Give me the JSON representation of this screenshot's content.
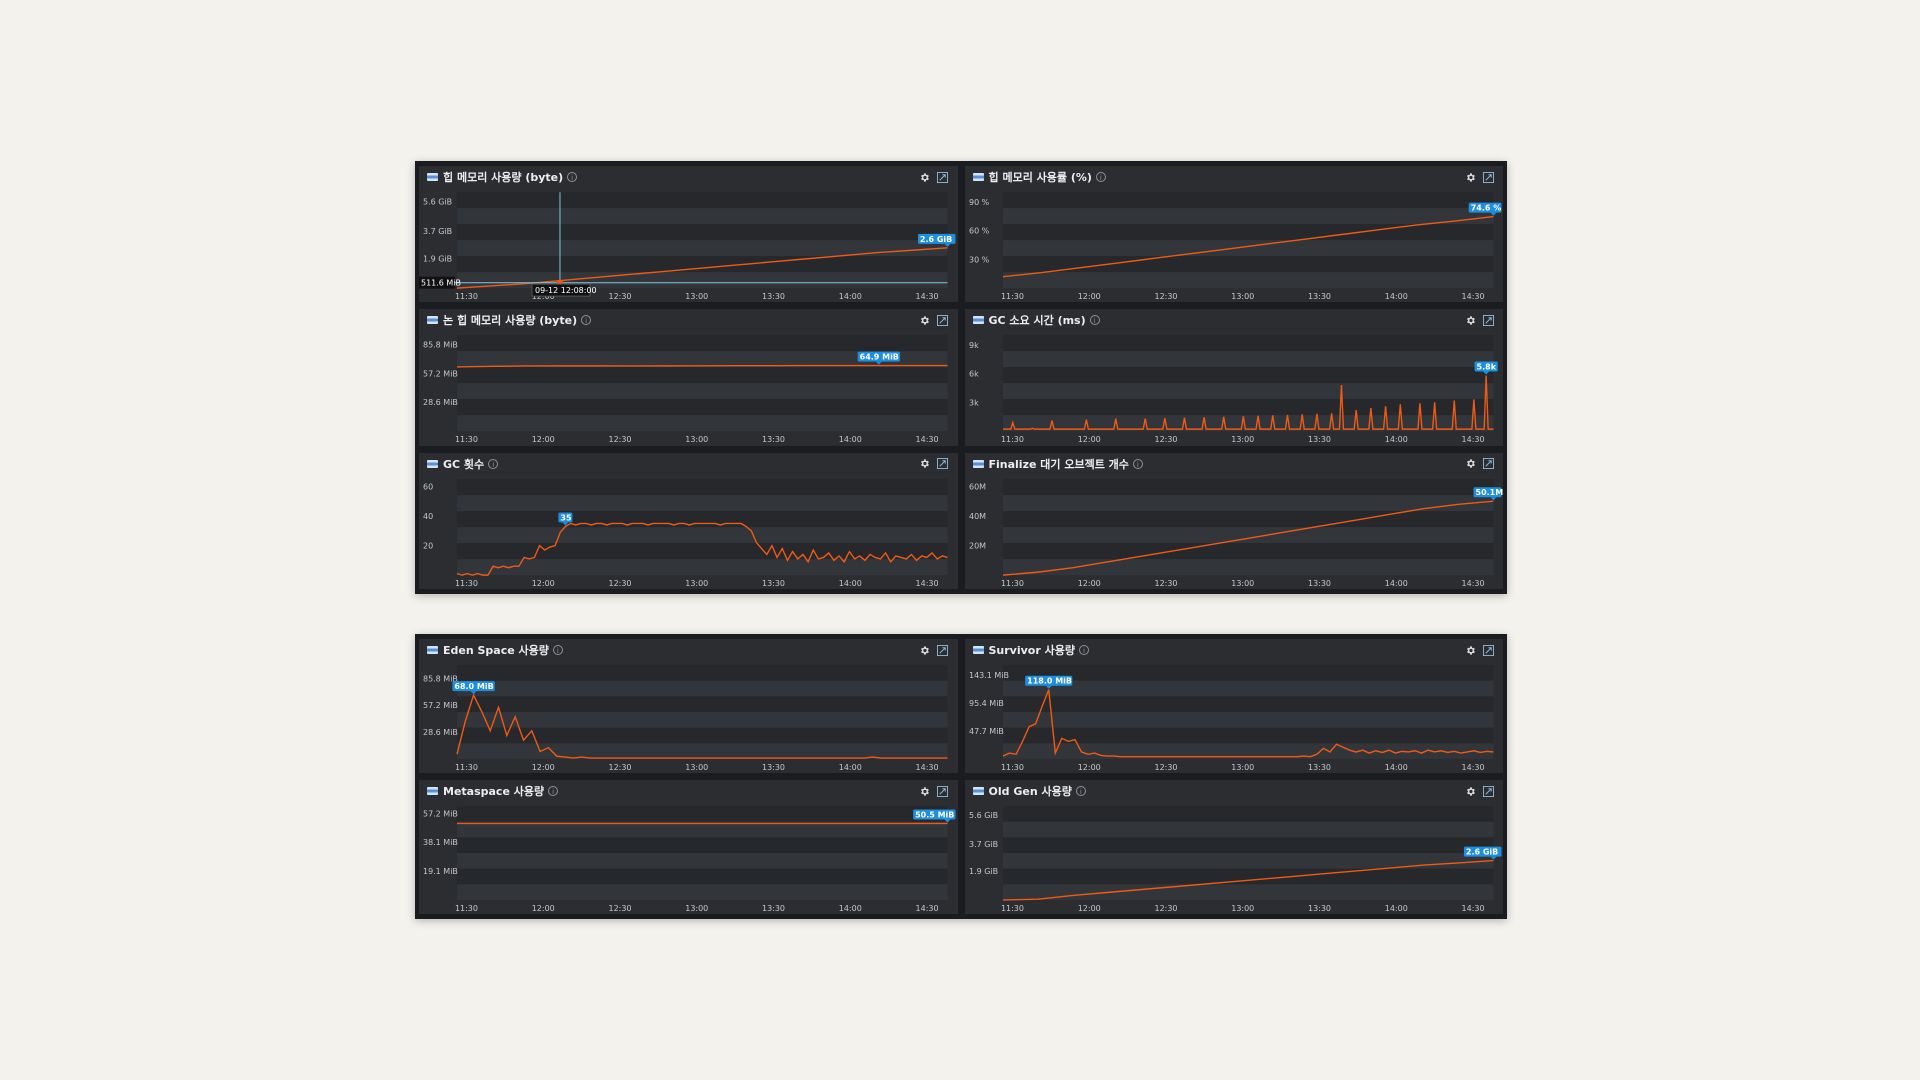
{
  "board_top": {
    "panels": [
      {
        "id": "heap-bytes",
        "title": "힙 메모리 사용량 (byte)",
        "yticks": [
          "5.6 GiB",
          "3.7 GiB",
          "1.9 GiB"
        ],
        "yvals": [
          5.6,
          3.7,
          1.9
        ],
        "ymax": 6.2,
        "xticks": [
          "11:30",
          "12:00",
          "12:30",
          "13:00",
          "13:30",
          "14:00",
          "14:30"
        ],
        "series": [
          0,
          0.15,
          0.3,
          0.5,
          0.7,
          0.9,
          1.1,
          1.3,
          1.5,
          1.7,
          1.9,
          2.1,
          2.3,
          2.45,
          2.6
        ],
        "last_label": "2.6 GiB",
        "cursor": {
          "frac": 0.21,
          "time_label": "09-12 12:08:00",
          "value_label": "511.6 MiB"
        }
      },
      {
        "id": "heap-percent",
        "title": "힙 메모리 사용률 (%)",
        "yticks": [
          "90 %",
          "60 %",
          "30 %"
        ],
        "yvals": [
          90,
          60,
          30
        ],
        "ymax": 100,
        "xticks": [
          "11:30",
          "12:00",
          "12:30",
          "13:00",
          "13:30",
          "14:00",
          "14:30"
        ],
        "series": [
          12,
          16,
          21,
          26,
          31,
          36,
          41,
          46,
          51,
          56,
          61,
          66,
          70,
          74.6
        ],
        "last_label": "74.6 %"
      },
      {
        "id": "non-heap-bytes",
        "title": "논 힙 메모리 사용량 (byte)",
        "yticks": [
          "85.8 MiB",
          "57.2 MiB",
          "28.6 MiB"
        ],
        "yvals": [
          85.8,
          57.2,
          28.6
        ],
        "ymax": 95,
        "xticks": [
          "11:30",
          "12:00",
          "12:30",
          "13:00",
          "13:30",
          "14:00",
          "14:30"
        ],
        "series": [
          63.5,
          64.2,
          64.5,
          64.6,
          64.6,
          64.5,
          64.6,
          64.7,
          64.8,
          64.8,
          64.9,
          64.9,
          64.9,
          64.9,
          64.9
        ],
        "last_label": "64.9 MiB",
        "label_frac": 0.86
      },
      {
        "id": "gc-time",
        "title": "GC 소요 시간 (ms)",
        "yticks": [
          "9k",
          "6k",
          "3k"
        ],
        "yvals": [
          9000,
          6000,
          3000
        ],
        "ymax": 10000,
        "xticks": [
          "11:30",
          "12:00",
          "12:30",
          "13:00",
          "13:30",
          "14:00",
          "14:30"
        ],
        "spikes": [
          [
            0.02,
            900
          ],
          [
            0.06,
            300
          ],
          [
            0.1,
            1100
          ],
          [
            0.17,
            1200
          ],
          [
            0.23,
            1300
          ],
          [
            0.29,
            1300
          ],
          [
            0.33,
            1350
          ],
          [
            0.37,
            1400
          ],
          [
            0.41,
            1450
          ],
          [
            0.45,
            1500
          ],
          [
            0.49,
            1550
          ],
          [
            0.52,
            1600
          ],
          [
            0.55,
            1650
          ],
          [
            0.58,
            1700
          ],
          [
            0.61,
            1750
          ],
          [
            0.64,
            1800
          ],
          [
            0.67,
            1850
          ],
          [
            0.69,
            4800
          ],
          [
            0.72,
            2200
          ],
          [
            0.75,
            2400
          ],
          [
            0.78,
            2600
          ],
          [
            0.81,
            2800
          ],
          [
            0.85,
            2900
          ],
          [
            0.88,
            3000
          ],
          [
            0.92,
            3200
          ],
          [
            0.96,
            3300
          ],
          [
            0.985,
            5800
          ]
        ],
        "last_label": "5.8k"
      },
      {
        "id": "gc-count",
        "title": "GC 횟수",
        "yticks": [
          "60",
          "40",
          "20"
        ],
        "yvals": [
          60,
          40,
          20
        ],
        "ymax": 65,
        "xticks": [
          "11:30",
          "12:00",
          "12:30",
          "13:00",
          "13:30",
          "14:00",
          "14:30"
        ],
        "series": [
          1,
          0,
          1,
          0,
          1,
          0,
          0,
          6,
          5,
          6,
          5,
          6,
          6,
          12,
          11,
          12,
          20,
          17,
          19,
          20,
          29,
          33,
          35,
          34,
          35,
          35,
          34,
          35,
          35,
          34,
          35,
          35,
          35,
          34,
          35,
          35,
          35,
          34,
          35,
          35,
          35,
          35,
          34,
          35,
          35,
          34,
          35,
          35,
          35,
          35,
          35,
          34,
          35,
          35,
          35,
          35,
          33,
          30,
          22,
          18,
          14,
          20,
          12,
          18,
          10,
          16,
          11,
          14,
          9,
          17,
          11,
          12,
          15,
          10,
          13,
          9,
          16,
          11,
          13,
          10,
          14,
          12,
          11,
          15,
          9,
          13,
          12,
          11,
          14,
          10,
          13,
          12,
          15,
          11,
          13,
          12
        ],
        "label_idx": 21,
        "last_label": "35"
      },
      {
        "id": "finalize-objects",
        "title": "Finalize 대기 오브젝트 개수",
        "yticks": [
          "60M",
          "40M",
          "20M"
        ],
        "yvals": [
          60,
          40,
          20
        ],
        "ymax": 65,
        "xticks": [
          "11:30",
          "12:00",
          "12:30",
          "13:00",
          "13:30",
          "14:00",
          "14:30"
        ],
        "series": [
          0,
          2,
          5,
          9,
          13,
          17,
          21,
          25,
          29,
          33,
          37,
          41,
          45,
          48,
          50.1
        ],
        "last_label": "50.1M"
      }
    ]
  },
  "board_bottom": {
    "panels": [
      {
        "id": "eden-space",
        "title": "Eden Space 사용량",
        "yticks": [
          "85.8 MiB",
          "57.2 MiB",
          "28.6 MiB"
        ],
        "yvals": [
          85.8,
          57.2,
          28.6
        ],
        "ymax": 100,
        "xticks": [
          "11:30",
          "12:00",
          "12:30",
          "13:00",
          "13:30",
          "14:00",
          "14:30"
        ],
        "series": [
          5,
          40,
          68,
          50,
          30,
          55,
          25,
          45,
          20,
          30,
          8,
          12,
          3,
          2,
          1,
          2,
          1,
          1,
          1,
          1,
          1,
          1,
          1,
          1,
          1,
          1,
          1,
          1,
          1,
          1,
          1,
          1,
          1,
          1,
          1,
          1,
          1,
          1,
          1,
          1,
          1,
          1,
          1,
          1,
          1,
          1,
          1,
          1,
          1,
          1,
          2,
          1,
          1,
          1,
          1,
          1,
          1,
          1,
          1,
          1
        ],
        "label_idx": 2,
        "last_label": "68.0 MiB"
      },
      {
        "id": "survivor-space",
        "title": "Survivor 사용량",
        "yticks": [
          "143.1 MiB",
          "95.4 MiB",
          "47.7 MiB"
        ],
        "yvals": [
          143.1,
          95.4,
          47.7
        ],
        "ymax": 160,
        "xticks": [
          "11:30",
          "12:00",
          "12:30",
          "13:00",
          "13:30",
          "14:00",
          "14:30"
        ],
        "series": [
          5,
          10,
          8,
          30,
          55,
          60,
          90,
          118,
          10,
          35,
          30,
          33,
          12,
          8,
          10,
          6,
          5,
          5,
          4,
          4,
          4,
          4,
          4,
          4,
          4,
          4,
          4,
          4,
          4,
          4,
          4,
          4,
          4,
          4,
          4,
          4,
          4,
          4,
          4,
          4,
          4,
          4,
          4,
          4,
          4,
          4,
          5,
          4,
          8,
          18,
          12,
          25,
          20,
          15,
          12,
          15,
          10,
          14,
          11,
          15,
          10,
          13,
          12,
          14,
          10,
          15,
          12,
          14,
          11,
          13,
          10,
          12,
          14,
          11,
          13,
          12
        ],
        "label_idx": 7,
        "last_label": "118.0 MiB"
      },
      {
        "id": "metaspace",
        "title": "Metaspace 사용량",
        "yticks": [
          "57.2 MiB",
          "38.1 MiB",
          "19.1 MiB"
        ],
        "yvals": [
          57.2,
          38.1,
          19.1
        ],
        "ymax": 62,
        "xticks": [
          "11:30",
          "12:00",
          "12:30",
          "13:00",
          "13:30",
          "14:00",
          "14:30"
        ],
        "series": [
          50.5,
          50.5,
          50.5,
          50.5,
          50.5,
          50.5,
          50.5,
          50.5,
          50.5,
          50.5
        ],
        "last_label": "50.5 MiB"
      },
      {
        "id": "old-gen",
        "title": "Old Gen 사용량",
        "yticks": [
          "5.6 GiB",
          "3.7 GiB",
          "1.9 GiB"
        ],
        "yvals": [
          5.6,
          3.7,
          1.9
        ],
        "ymax": 6.2,
        "xticks": [
          "11:30",
          "12:00",
          "12:30",
          "13:00",
          "13:30",
          "14:00",
          "14:30"
        ],
        "series": [
          0,
          0.05,
          0.3,
          0.5,
          0.7,
          0.9,
          1.1,
          1.3,
          1.5,
          1.7,
          1.9,
          2.1,
          2.3,
          2.45,
          2.6
        ],
        "last_label": "2.6 GiB"
      }
    ]
  },
  "colors": {
    "line": "#f05a14",
    "badge": "#1e8fe0",
    "cursor": "#7cc7e8",
    "band_dark": "#26282c",
    "band_light": "#32353a",
    "tick": "#c4c7cc"
  },
  "icons": {
    "settings": "gear-icon",
    "expand": "expand-icon",
    "info": "info-icon",
    "flag": "flag-icon"
  }
}
